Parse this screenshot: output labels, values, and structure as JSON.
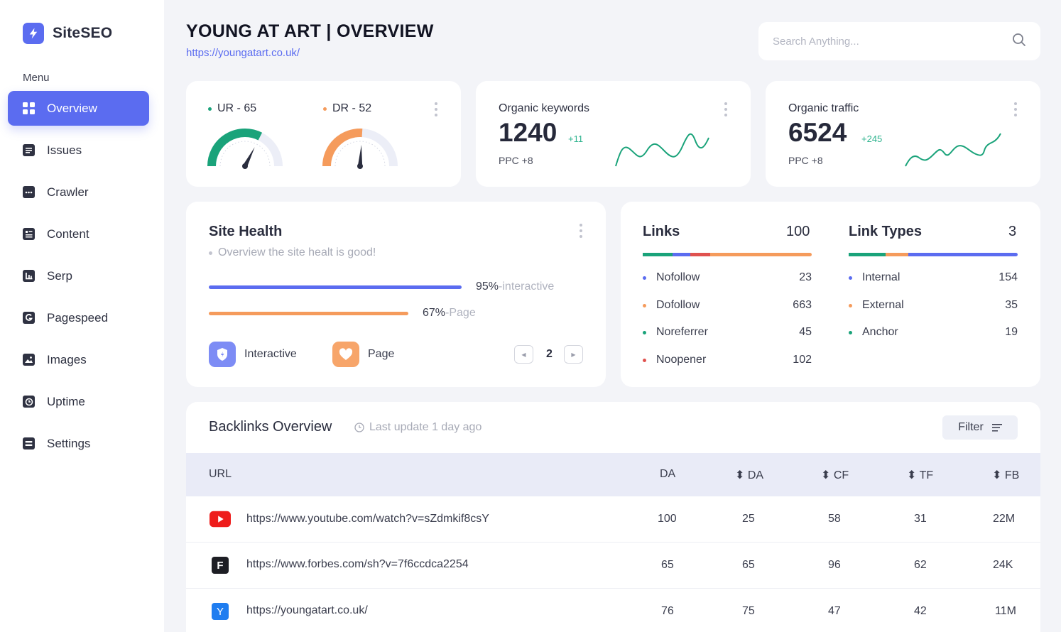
{
  "brand": {
    "name": "SiteSEO"
  },
  "sidebar": {
    "menu_title": "Menu",
    "items": [
      {
        "label": "Overview",
        "icon": "grid-icon",
        "active": true
      },
      {
        "label": "Issues",
        "icon": "list-icon"
      },
      {
        "label": "Crawler",
        "icon": "dots-square-icon"
      },
      {
        "label": "Content",
        "icon": "document-icon"
      },
      {
        "label": "Serp",
        "icon": "bar-chart-icon"
      },
      {
        "label": "Pagespeed",
        "icon": "g-icon"
      },
      {
        "label": "Images",
        "icon": "image-icon"
      },
      {
        "label": "Uptime",
        "icon": "clock-icon"
      },
      {
        "label": "Settings",
        "icon": "settings-icon"
      }
    ]
  },
  "header": {
    "title": "YOUNG AT ART | OVERVIEW",
    "url": "https://youngatart.co.uk/",
    "search_placeholder": "Search Anything..."
  },
  "ratings": {
    "ur": {
      "label": "UR - 65",
      "value": 65,
      "color": "#1aa37a"
    },
    "dr": {
      "label": "DR - 52",
      "value": 52,
      "color": "#f59b5c"
    }
  },
  "organic_keywords": {
    "title": "Organic keywords",
    "value": "1240",
    "delta": "+11",
    "ppc": "PPC +8"
  },
  "organic_traffic": {
    "title": "Organic traffic",
    "value": "6524",
    "delta": "+245",
    "ppc": "PPC +8"
  },
  "site_health": {
    "title": "Site Health",
    "subtitle": "Overview the site healt is good!",
    "bars": [
      {
        "pct": "95%",
        "label": "-interactive",
        "value": 0.95,
        "color": "#5b6cf0"
      },
      {
        "pct": "67%",
        "label": "-Page",
        "value": 0.67,
        "color": "#f59b5c"
      }
    ],
    "legend": [
      {
        "label": "Interactive",
        "icon": "shield-icon"
      },
      {
        "label": "Page",
        "icon": "heart-icon"
      }
    ],
    "page": "2"
  },
  "links": {
    "title": "Links",
    "total": "100",
    "rows": [
      {
        "label": "Nofollow",
        "value": "23",
        "color": "#5b6cf0"
      },
      {
        "label": "Dofollow",
        "value": "663",
        "color": "#f59b5c"
      },
      {
        "label": "Noreferrer",
        "value": "45",
        "color": "#1aa37a"
      },
      {
        "label": "Noopener",
        "value": "102",
        "color": "#e0524f"
      }
    ]
  },
  "link_types": {
    "title": "Link Types",
    "total": "3",
    "rows": [
      {
        "label": "Internal",
        "value": "154",
        "color": "#5b6cf0"
      },
      {
        "label": "External",
        "value": "35",
        "color": "#f59b5c"
      },
      {
        "label": "Anchor",
        "value": "19",
        "color": "#1aa37a"
      }
    ]
  },
  "backlinks": {
    "title": "Backlinks Overview",
    "last_update": "Last update 1 day ago",
    "filter_label": "Filter",
    "columns": [
      "URL",
      "DA",
      "DA",
      "CF",
      "TF",
      "FB"
    ],
    "rows": [
      {
        "url": "https://www.youtube.com/watch?v=sZdmkif8csY",
        "icon": "youtube-icon",
        "da": "100",
        "da2": "25",
        "cf": "58",
        "tf": "31",
        "fb": "22M"
      },
      {
        "url": "https://www.forbes.com/sh?v=7f6ccdca2254",
        "icon": "forbes-icon",
        "fav_letter": "F",
        "da": "65",
        "da2": "65",
        "cf": "96",
        "tf": "62",
        "fb": "24K"
      },
      {
        "url": "https://youngatart.co.uk/",
        "icon": "y-icon",
        "fav_letter": "Y",
        "da": "76",
        "da2": "75",
        "cf": "47",
        "tf": "42",
        "fb": "11M"
      }
    ]
  }
}
